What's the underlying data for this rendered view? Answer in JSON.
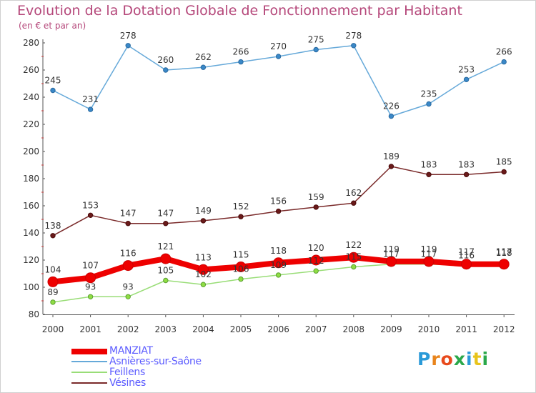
{
  "header": {
    "title": "Evolution de la Dotation Globale de Fonctionnement par Habitant",
    "subtitle": "(en € et par an)"
  },
  "brand": {
    "logo_text": "Proxiti"
  },
  "chart_data": {
    "type": "line",
    "title": "Evolution de la Dotation Globale de Fonctionnement par Habitant",
    "subtitle": "(en € et par an)",
    "categories": [
      "2000",
      "2001",
      "2002",
      "2003",
      "2004",
      "2005",
      "2006",
      "2007",
      "2008",
      "2009",
      "2010",
      "2011",
      "2012"
    ],
    "ylim": [
      80,
      280
    ],
    "yticks": [
      80,
      100,
      120,
      140,
      160,
      180,
      200,
      220,
      240,
      260,
      280
    ],
    "grid": false,
    "legend_position": "bottom-left",
    "series": [
      {
        "name": "MANZIAT",
        "color": "#ee0000",
        "highlight": true,
        "values": [
          104,
          107,
          116,
          121,
          113,
          115,
          118,
          120,
          122,
          119,
          119,
          117,
          117
        ]
      },
      {
        "name": "Asnières-sur-Saône",
        "color": "#66a9d9",
        "values": [
          245,
          231,
          278,
          260,
          262,
          266,
          270,
          275,
          278,
          226,
          235,
          253,
          266
        ]
      },
      {
        "name": "Feillens",
        "color": "#99dd77",
        "values": [
          89,
          93,
          93,
          105,
          102,
          106,
          109,
          112,
          115,
          117,
          117,
          116,
          118
        ]
      },
      {
        "name": "Vésines",
        "color": "#7a2a2a",
        "values": [
          138,
          153,
          147,
          147,
          149,
          152,
          156,
          159,
          162,
          189,
          183,
          183,
          185
        ]
      }
    ]
  }
}
